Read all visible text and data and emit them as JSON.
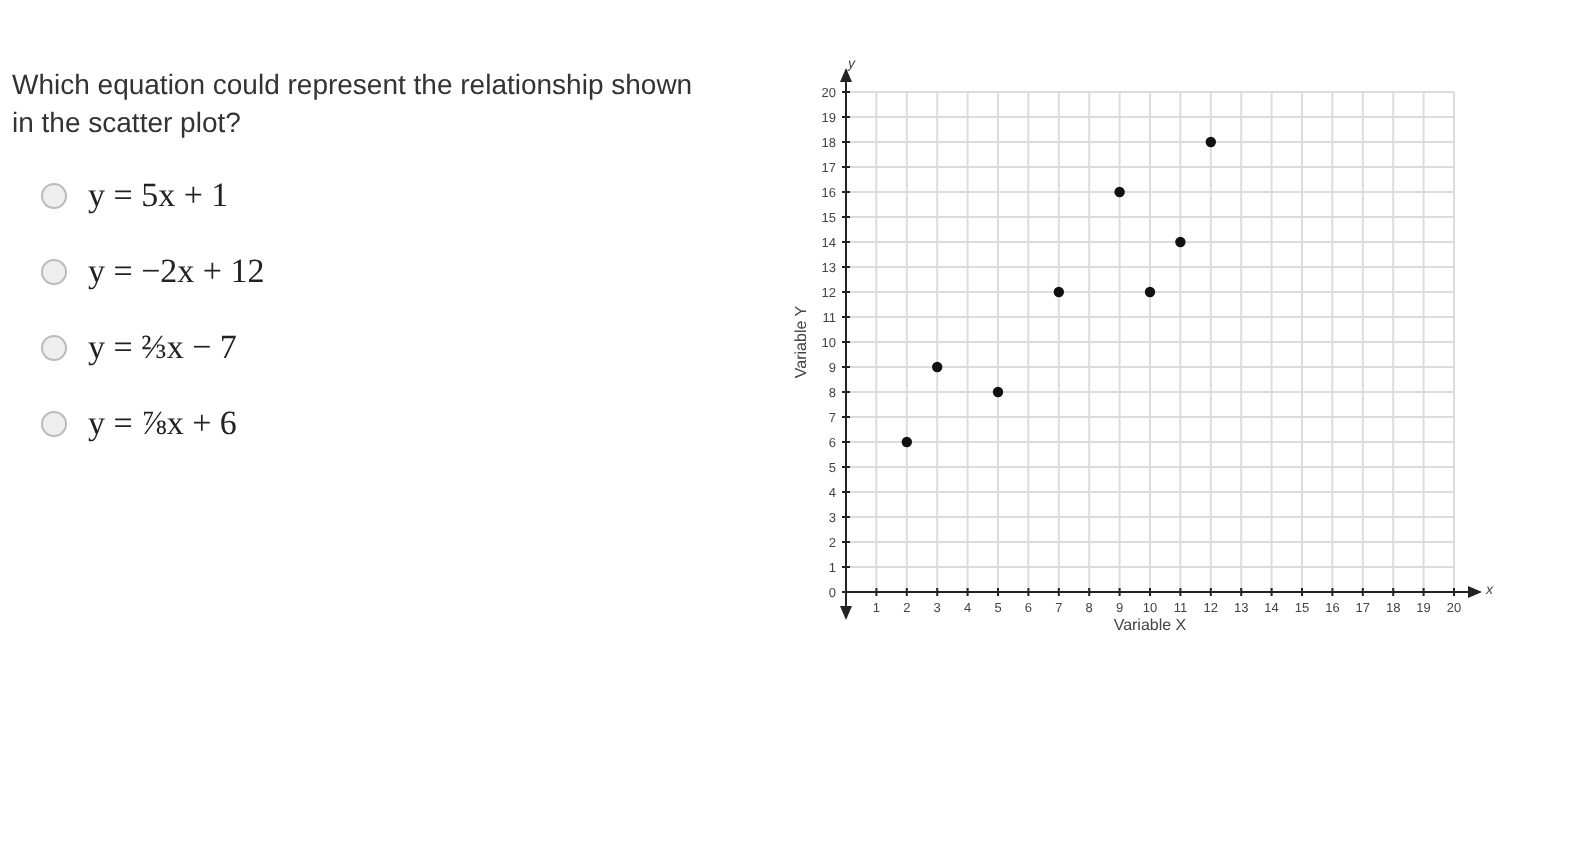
{
  "chart_data": {
    "type": "scatter",
    "title": "Which equation could represent the relationship shown in the scatter plot?",
    "xlabel": "Variable X",
    "ylabel": "Variable Y",
    "x": [
      2,
      3,
      5,
      7,
      9,
      10,
      11,
      12
    ],
    "series": [
      {
        "color": "#111111",
        "values": [
          6,
          9,
          8,
          12,
          16,
          12,
          14,
          18
        ]
      }
    ],
    "xlim": [
      0,
      20
    ],
    "ylim": [
      0,
      20
    ],
    "xticks": [
      1,
      2,
      3,
      4,
      5,
      6,
      7,
      8,
      9,
      10,
      11,
      12,
      13,
      14,
      15,
      16,
      17,
      18,
      19,
      20
    ],
    "yticks": [
      0,
      1,
      2,
      3,
      4,
      5,
      6,
      7,
      8,
      9,
      10,
      11,
      12,
      13,
      14,
      15,
      16,
      17,
      18,
      19,
      20
    ],
    "grid": true,
    "marker": "circle",
    "annotations": [
      "y = 5x + 1",
      "y = −2x + 12",
      "y = ⅔x − 7",
      "y = ⅞x + 6",
      "x",
      "y"
    ]
  }
}
